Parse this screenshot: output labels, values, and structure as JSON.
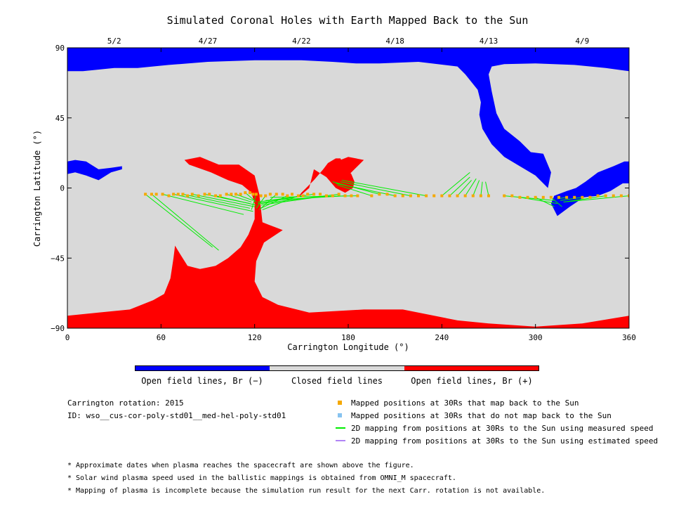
{
  "chart_data": {
    "type": "map",
    "title": "Simulated Coronal Holes with Earth Mapped Back to the Sun",
    "xlabel": "Carrington Longitude (°)",
    "ylabel": "Carrington Latitude (°)",
    "xlim": [
      0,
      360
    ],
    "ylim": [
      -90,
      90
    ],
    "x_ticks": [
      "0",
      "60",
      "120",
      "180",
      "240",
      "300",
      "360"
    ],
    "y_ticks": [
      "90",
      "45",
      "0",
      "-45",
      "-90"
    ],
    "top_dates": [
      {
        "label": "5/2",
        "lon": 30
      },
      {
        "label": "4/27",
        "lon": 90
      },
      {
        "label": "4/22",
        "lon": 150
      },
      {
        "label": "4/18",
        "lon": 210
      },
      {
        "label": "4/13",
        "lon": 270
      },
      {
        "label": "4/9",
        "lon": 330
      }
    ],
    "colors": {
      "open_negative": "#0000ff",
      "closed": "#d9d9d9",
      "open_positive": "#ff0000",
      "mapped_point": "#f5a800",
      "unmapped_point": "#87c3f0",
      "measured_line": "#00ee00",
      "estimated_line": "#b084f5"
    },
    "colorbar": [
      {
        "label": "Open field lines, Br (−)",
        "color": "#0000ff"
      },
      {
        "label": "Closed field lines",
        "color": "#d9d9d9"
      },
      {
        "label": "Open field lines, Br (+)",
        "color": "#ff0000"
      }
    ],
    "regions": [
      {
        "polarity": "negative",
        "lonlat": [
          [
            0,
            90
          ],
          [
            360,
            90
          ],
          [
            360,
            75
          ],
          [
            345,
            77
          ],
          [
            325,
            79
          ],
          [
            300,
            80
          ],
          [
            280,
            79.5
          ],
          [
            272,
            78
          ],
          [
            270,
            73
          ],
          [
            272,
            62
          ],
          [
            275,
            48
          ],
          [
            280,
            38
          ],
          [
            290,
            30
          ],
          [
            297,
            23
          ],
          [
            305,
            22
          ],
          [
            310,
            10
          ],
          [
            308,
            0
          ],
          [
            300,
            8
          ],
          [
            290,
            14
          ],
          [
            280,
            20
          ],
          [
            272,
            28
          ],
          [
            266,
            38
          ],
          [
            264,
            47
          ],
          [
            265,
            55
          ],
          [
            263,
            63
          ],
          [
            255,
            73
          ],
          [
            250,
            78
          ],
          [
            225,
            81
          ],
          [
            200,
            80
          ],
          [
            185,
            80
          ],
          [
            170,
            81
          ],
          [
            150,
            82
          ],
          [
            120,
            82
          ],
          [
            90,
            81
          ],
          [
            65,
            79
          ],
          [
            45,
            77
          ],
          [
            30,
            77
          ],
          [
            10,
            75
          ],
          [
            0,
            75
          ]
        ]
      },
      {
        "polarity": "negative",
        "lonlat": [
          [
            0,
            17
          ],
          [
            5,
            18
          ],
          [
            12,
            17
          ],
          [
            20,
            12
          ],
          [
            28,
            13
          ],
          [
            35,
            14
          ],
          [
            35,
            12
          ],
          [
            28,
            10
          ],
          [
            20,
            5
          ],
          [
            12,
            8
          ],
          [
            5,
            10
          ],
          [
            0,
            9
          ]
        ]
      },
      {
        "polarity": "negative",
        "lonlat": [
          [
            360,
            17
          ],
          [
            357,
            17
          ],
          [
            350,
            14
          ],
          [
            340,
            10
          ],
          [
            332,
            4
          ],
          [
            326,
            0
          ],
          [
            320,
            -2
          ],
          [
            312,
            -5
          ],
          [
            310,
            -10
          ],
          [
            314,
            -18
          ],
          [
            322,
            -12
          ],
          [
            331,
            -6
          ],
          [
            340,
            -5
          ],
          [
            348,
            -2
          ],
          [
            356,
            3
          ],
          [
            360,
            3
          ]
        ]
      },
      {
        "polarity": "positive",
        "lonlat": [
          [
            0,
            -82
          ],
          [
            20,
            -80
          ],
          [
            40,
            -78
          ],
          [
            55,
            -72
          ],
          [
            62,
            -68
          ],
          [
            66,
            -58
          ],
          [
            68,
            -45
          ],
          [
            69,
            -37
          ],
          [
            72,
            -42
          ],
          [
            77,
            -50
          ],
          [
            85,
            -52
          ],
          [
            95,
            -50
          ],
          [
            103,
            -45
          ],
          [
            111,
            -38
          ],
          [
            116,
            -30
          ],
          [
            120,
            -20
          ],
          [
            120,
            -10
          ],
          [
            118,
            -3
          ],
          [
            112,
            2
          ],
          [
            103,
            5
          ],
          [
            92,
            10
          ],
          [
            78,
            15
          ],
          [
            75,
            18
          ],
          [
            85,
            20
          ],
          [
            97,
            15
          ],
          [
            110,
            15
          ],
          [
            120,
            8
          ],
          [
            123,
            -4
          ],
          [
            125,
            -22
          ],
          [
            138,
            -27
          ],
          [
            126,
            -35
          ],
          [
            121,
            -47
          ],
          [
            120,
            -60
          ],
          [
            125,
            -70
          ],
          [
            135,
            -75
          ],
          [
            155,
            -80
          ],
          [
            190,
            -78
          ],
          [
            215,
            -78
          ],
          [
            230,
            -81
          ],
          [
            250,
            -85
          ],
          [
            270,
            -87
          ],
          [
            300,
            -89
          ],
          [
            330,
            -87
          ],
          [
            360,
            -82
          ],
          [
            360,
            -90
          ],
          [
            0,
            -90
          ]
        ]
      },
      {
        "polarity": "positive",
        "lonlat": [
          [
            145,
            -10
          ],
          [
            150,
            -3
          ],
          [
            158,
            5
          ],
          [
            164,
            12
          ],
          [
            167,
            16
          ],
          [
            172,
            19
          ],
          [
            175,
            19
          ],
          [
            178,
            13
          ],
          [
            182,
            9
          ],
          [
            184,
            4
          ],
          [
            183,
            0
          ],
          [
            178,
            -3
          ],
          [
            172,
            0
          ],
          [
            166,
            7
          ],
          [
            158,
            12
          ],
          [
            155,
            0
          ],
          [
            148,
            -6
          ]
        ]
      },
      {
        "polarity": "positive",
        "lonlat": [
          [
            164,
            12
          ],
          [
            168,
            14
          ],
          [
            175,
            18
          ],
          [
            180,
            20
          ],
          [
            185,
            19
          ],
          [
            190,
            18
          ],
          [
            188,
            16
          ],
          [
            182,
            10
          ],
          [
            178,
            6
          ],
          [
            172,
            6
          ],
          [
            166,
            8
          ]
        ]
      }
    ],
    "series": [
      {
        "name": "Mapped positions at 30Rs that map back to the Sun",
        "kind": "points",
        "lon": [
          50,
          54,
          57,
          61,
          65,
          68,
          71,
          74,
          77,
          80,
          84,
          88,
          91,
          95,
          98,
          102,
          105,
          108,
          111,
          114,
          117,
          119,
          121,
          124,
          127,
          130,
          134,
          138,
          141,
          144,
          148,
          151,
          154,
          158,
          162,
          166,
          170,
          174,
          178,
          182,
          186,
          195,
          200,
          205,
          210,
          215,
          220,
          225,
          230,
          235,
          240,
          245,
          250,
          255,
          260,
          265,
          270,
          280,
          285,
          290,
          295,
          300,
          305,
          310,
          315,
          320,
          325,
          330,
          335,
          340,
          345,
          350,
          355,
          360
        ],
        "lat": [
          -4,
          -4,
          -4,
          -4,
          -5,
          -4,
          -4,
          -4,
          -5,
          -4,
          -5,
          -4,
          -4,
          -5,
          -5,
          -4,
          -4,
          -4,
          -4,
          -3,
          -3,
          -4,
          -4,
          -5,
          -5,
          -4,
          -4,
          -4,
          -5,
          -4,
          -5,
          -5,
          -4,
          -4,
          -4,
          -5,
          -5,
          -4,
          -5,
          -5,
          -5,
          -5,
          -4,
          -4,
          -5,
          -5,
          -5,
          -5,
          -5,
          -5,
          -5,
          -5,
          -5,
          -5,
          -5,
          -5,
          -5,
          -5,
          -5,
          -6,
          -6,
          -6,
          -6,
          -6,
          -6,
          -6,
          -6,
          -6,
          -6,
          -5,
          -5,
          -5,
          -5,
          -5
        ]
      },
      {
        "name": "2D mapping from positions at 30Rs to the Sun using measured speed",
        "kind": "segments",
        "segments": [
          [
            [
              50,
              -4
            ],
            [
              93,
              -38
            ]
          ],
          [
            [
              54,
              -4
            ],
            [
              97,
              -40
            ]
          ],
          [
            [
              61,
              -4
            ],
            [
              113,
              -17
            ]
          ],
          [
            [
              68,
              -4
            ],
            [
              119,
              -15
            ]
          ],
          [
            [
              74,
              -4
            ],
            [
              117,
              -13
            ]
          ],
          [
            [
              80,
              -4
            ],
            [
              120,
              -12
            ]
          ],
          [
            [
              88,
              -4
            ],
            [
              117,
              -10
            ]
          ],
          [
            [
              95,
              -5
            ],
            [
              121,
              -11
            ]
          ],
          [
            [
              102,
              -4
            ],
            [
              118,
              -9
            ]
          ],
          [
            [
              108,
              -4
            ],
            [
              119,
              -8
            ]
          ],
          [
            [
              114,
              -3
            ],
            [
              121,
              -9
            ]
          ],
          [
            [
              121,
              -4
            ],
            [
              118,
              -14
            ]
          ],
          [
            [
              127,
              -5
            ],
            [
              121,
              -13
            ]
          ],
          [
            [
              134,
              -4
            ],
            [
              123,
              -14
            ]
          ],
          [
            [
              141,
              -5
            ],
            [
              124,
              -13
            ]
          ],
          [
            [
              148,
              -5
            ],
            [
              125,
              -14
            ]
          ],
          [
            [
              151,
              -5
            ],
            [
              122,
              -10
            ]
          ],
          [
            [
              158,
              -4
            ],
            [
              122,
              -9
            ]
          ],
          [
            [
              166,
              -5
            ],
            [
              124,
              -11
            ]
          ],
          [
            [
              174,
              -4
            ],
            [
              124,
              -10
            ]
          ],
          [
            [
              178,
              -5
            ],
            [
              127,
              -8
            ]
          ],
          [
            [
              186,
              -5
            ],
            [
              130,
              -6
            ]
          ],
          [
            [
              195,
              -5
            ],
            [
              173,
              2
            ]
          ],
          [
            [
              200,
              -4
            ],
            [
              170,
              4
            ]
          ],
          [
            [
              210,
              -5
            ],
            [
              172,
              3
            ]
          ],
          [
            [
              220,
              -5
            ],
            [
              175,
              4
            ]
          ],
          [
            [
              230,
              -5
            ],
            [
              176,
              5
            ]
          ],
          [
            [
              240,
              -5
            ],
            [
              258,
              10
            ]
          ],
          [
            [
              245,
              -5
            ],
            [
              258,
              7
            ]
          ],
          [
            [
              250,
              -5
            ],
            [
              259,
              5
            ]
          ],
          [
            [
              255,
              -5
            ],
            [
              262,
              6
            ]
          ],
          [
            [
              260,
              -5
            ],
            [
              264,
              5
            ]
          ],
          [
            [
              265,
              -5
            ],
            [
              266,
              4
            ]
          ],
          [
            [
              270,
              -5
            ],
            [
              268,
              4
            ]
          ],
          [
            [
              280,
              -5
            ],
            [
              312,
              -8
            ]
          ],
          [
            [
              290,
              -6
            ],
            [
              314,
              -10
            ]
          ],
          [
            [
              300,
              -6
            ],
            [
              312,
              -12
            ]
          ],
          [
            [
              310,
              -6
            ],
            [
              317,
              -12
            ]
          ],
          [
            [
              320,
              -6
            ],
            [
              314,
              -7
            ]
          ],
          [
            [
              330,
              -6
            ],
            [
              316,
              -8
            ]
          ],
          [
            [
              345,
              -5
            ],
            [
              318,
              -9
            ]
          ],
          [
            [
              360,
              -5
            ],
            [
              318,
              -9
            ]
          ]
        ]
      }
    ]
  },
  "legend": {
    "mapped": "Mapped positions at 30Rs that map back to the Sun",
    "unmapped": "Mapped positions at 30Rs that do not map back to the Sun",
    "measured": "2D mapping from positions at 30Rs to the Sun using measured speed",
    "estimated": "2D mapping from positions at 30Rs to the Sun using estimated speed"
  },
  "info": {
    "rotation": "Carrington rotation: 2015",
    "id": "ID: wso__cus-cor-poly-std01__med-hel-poly-std01"
  },
  "notes": [
    "* Approximate dates when plasma reaches the spacecraft are shown above the figure.",
    "* Solar wind plasma speed used in the ballistic mappings is obtained from OMNI_M spacecraft.",
    "* Mapping of plasma is incomplete because the simulation run result for the next Carr. rotation is not available."
  ]
}
